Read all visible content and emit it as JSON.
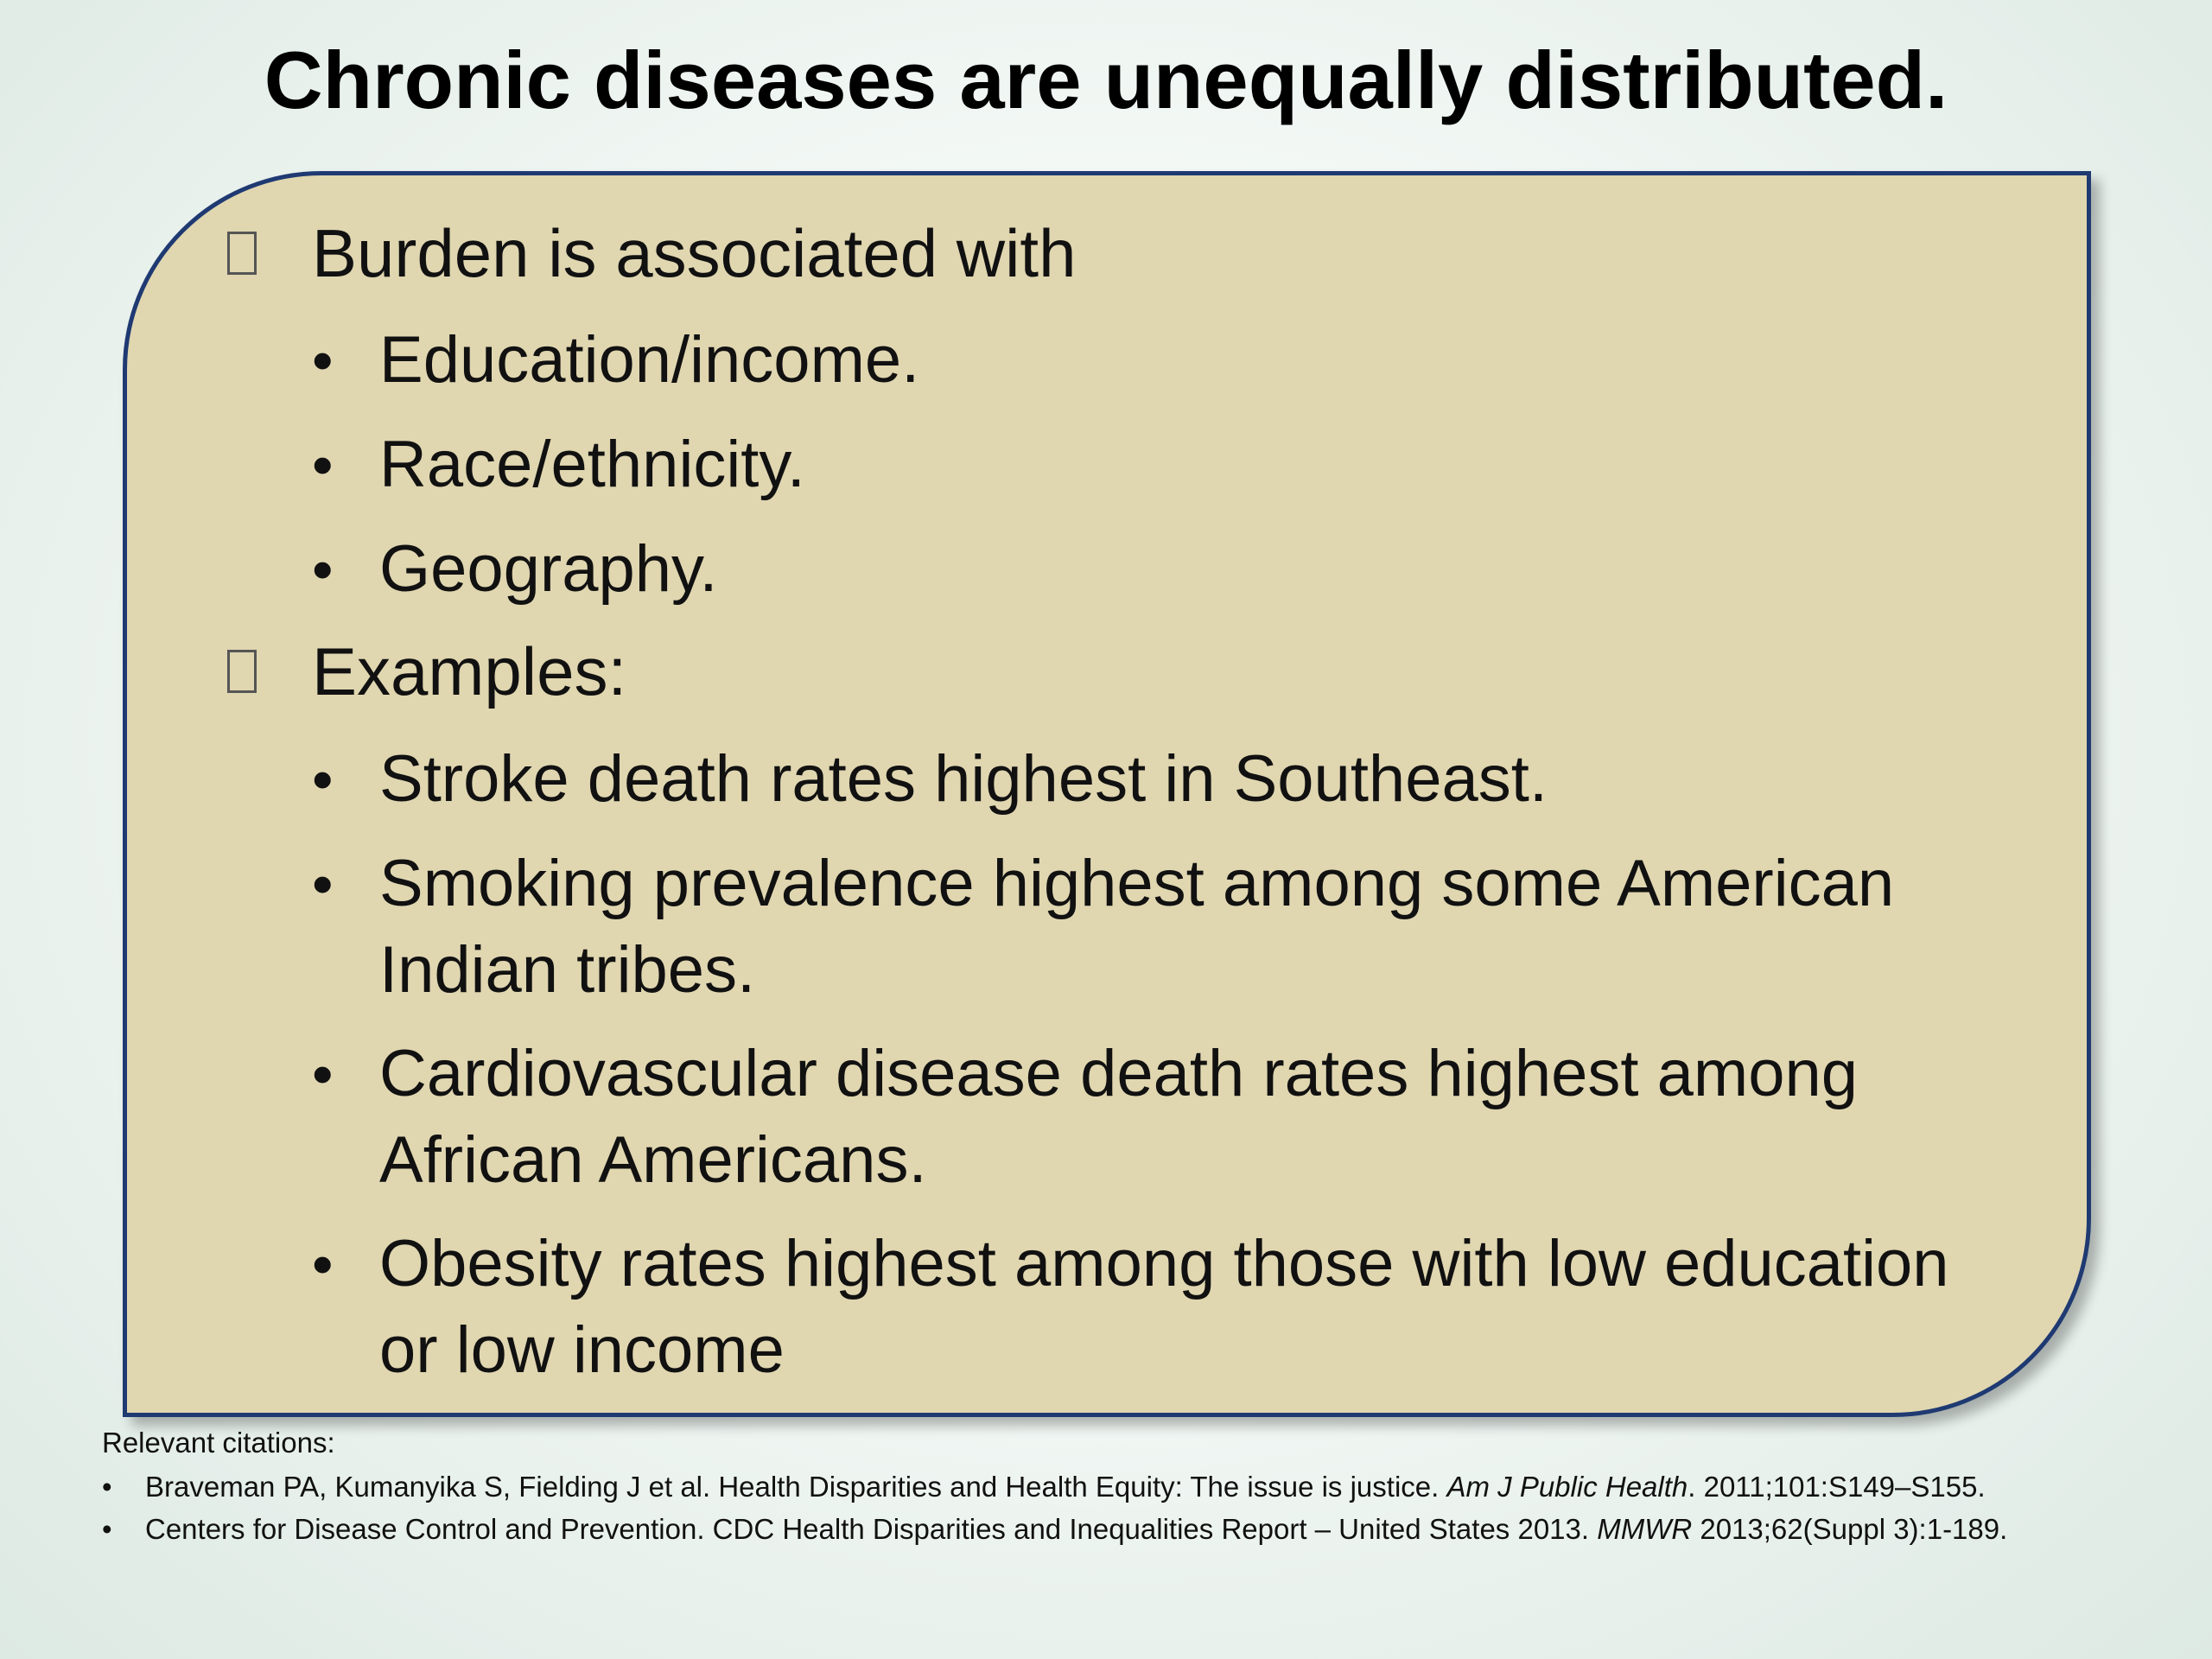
{
  "slide": {
    "title": "Chronic diseases are unequally distributed."
  },
  "content": {
    "burden_heading": "Burden is associated with",
    "burden_items": [
      "Education/income.",
      "Race/ethnicity.",
      "Geography."
    ],
    "examples_heading": "Examples:",
    "example_items": [
      "Stroke death rates highest in Southeast.",
      "Smoking prevalence highest among some American Indian tribes.",
      "Cardiovascular disease death rates highest among African Americans.",
      "Obesity rates highest among those with low education or low income"
    ]
  },
  "citations": {
    "heading": "Relevant citations:",
    "items": [
      {
        "pre": "Braveman PA, Kumanyika S, Fielding J et al. Health Disparities and Health Equity: The issue is justice. ",
        "journal": "Am J Public Health",
        "post": ". 2011;101:S149–S155."
      },
      {
        "pre": "Centers for Disease Control and Prevention. CDC Health Disparities and Inequalities Report – United States 2013. ",
        "journal": "MMWR",
        "post": " 2013;62(Suppl 3):1-189."
      }
    ]
  }
}
